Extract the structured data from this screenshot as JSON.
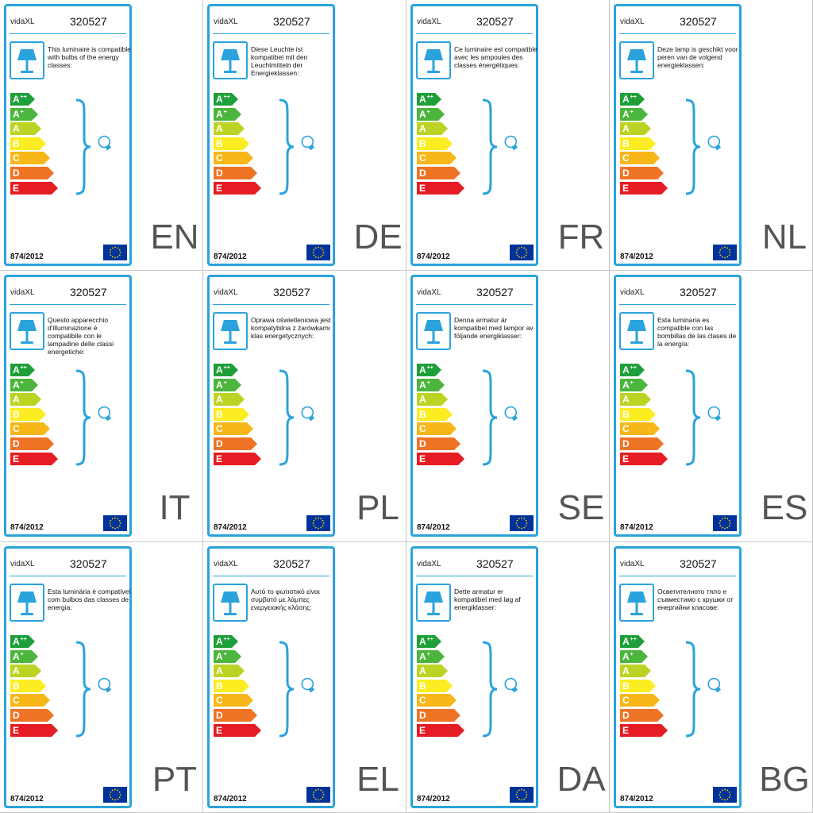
{
  "brand": "vidaXL",
  "model": "320527",
  "regulation": "874/2012",
  "icons": {
    "lamp": "table-lamp-icon",
    "bulb": "light-bulb-icon",
    "flag": "eu-flag-icon"
  },
  "energy_classes": [
    {
      "letter": "A",
      "sup": "++",
      "color": "#1f9f3a"
    },
    {
      "letter": "A",
      "sup": "+",
      "color": "#4cb53d"
    },
    {
      "letter": "A",
      "sup": "",
      "color": "#bdd324"
    },
    {
      "letter": "B",
      "sup": "",
      "color": "#fbed21"
    },
    {
      "letter": "C",
      "sup": "",
      "color": "#f7b719"
    },
    {
      "letter": "D",
      "sup": "",
      "color": "#ee7325"
    },
    {
      "letter": "E",
      "sup": "",
      "color": "#e51c23"
    }
  ],
  "colors": {
    "accent": "#2aa3dc",
    "eu_blue": "#003399",
    "eu_star": "#ffcc00"
  },
  "labels": [
    {
      "lang": "EN",
      "text": "This luminaire is compatible with bulbs of the energy classes:"
    },
    {
      "lang": "DE",
      "text": "Diese Leuchte ist kompatibel mit den Leuchtmitteln der Energieklassen:"
    },
    {
      "lang": "FR",
      "text": "Ce luminaire est compatible avec les ampoules des classes énergétiques:"
    },
    {
      "lang": "NL",
      "text": "Deze lamp is geschikt voor peren van de volgend energieklassen:"
    },
    {
      "lang": "IT",
      "text": "Questo apparecchio d'illuminazione è compatibile con le lampadine delle classi energetiche:"
    },
    {
      "lang": "PL",
      "text": "Oprawa oświetleniowa jest kompatybilna z żarówkami klas energetycznych:"
    },
    {
      "lang": "SE",
      "text": "Denna armatur är kompatibel med lampor av följande energiklasser:"
    },
    {
      "lang": "ES",
      "text": "Esta luminaria es compatible con las bombillas de las clases de la energía:"
    },
    {
      "lang": "PT",
      "text": "Esta luminária é compatível com bulbos das classes de energia:"
    },
    {
      "lang": "EL",
      "text": "Αυτό το φωτιστικό είναι συμβατό με λάμπες ενεργειακής κλάσης:"
    },
    {
      "lang": "DA",
      "text": "Dette armatur er kompatibel med løg af energiklasser:"
    },
    {
      "lang": "BG",
      "text": "Осветителното тяло е съвместимо с крушки от енергийни класове:"
    }
  ]
}
